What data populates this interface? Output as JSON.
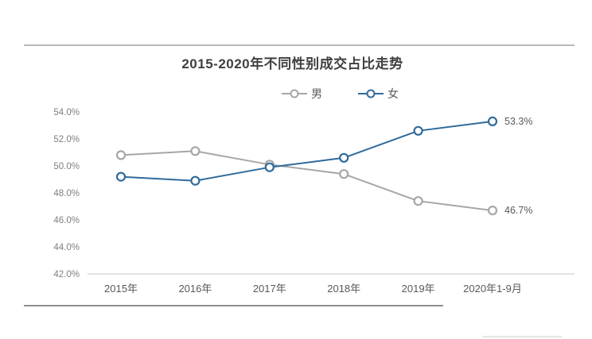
{
  "chart_data": {
    "type": "line",
    "title": "2015-2020年不同性别成交占比走势",
    "categories": [
      "2015年",
      "2016年",
      "2017年",
      "2018年",
      "2019年",
      "2020年1-9月"
    ],
    "series": [
      {
        "name": "男",
        "color": "#a6a6a6",
        "values": [
          50.8,
          51.1,
          50.1,
          49.4,
          47.4,
          46.7
        ],
        "end_label": "46.7%"
      },
      {
        "name": "女",
        "color": "#306a9a",
        "values": [
          49.2,
          48.9,
          49.9,
          50.6,
          52.6,
          53.3
        ],
        "end_label": "53.3%"
      }
    ],
    "ylim": [
      42,
      54
    ],
    "yticks": [
      {
        "value": 42,
        "label": "42.0%"
      },
      {
        "value": 44,
        "label": "44.0%"
      },
      {
        "value": 46,
        "label": "46.0%"
      },
      {
        "value": 48,
        "label": "48.0%"
      },
      {
        "value": 50,
        "label": "50.0%"
      },
      {
        "value": 52,
        "label": "52.0%"
      },
      {
        "value": 54,
        "label": "54.0%"
      }
    ],
    "grid": false,
    "legend_position": "top",
    "marker": "hollow-circle",
    "axis_color": "#d9d9d9",
    "y_tick_label_color": "#7f7f7f",
    "x_tick_label_color": "#595959",
    "end_label_color": "#595959",
    "title_color": "#3f3f3f"
  }
}
